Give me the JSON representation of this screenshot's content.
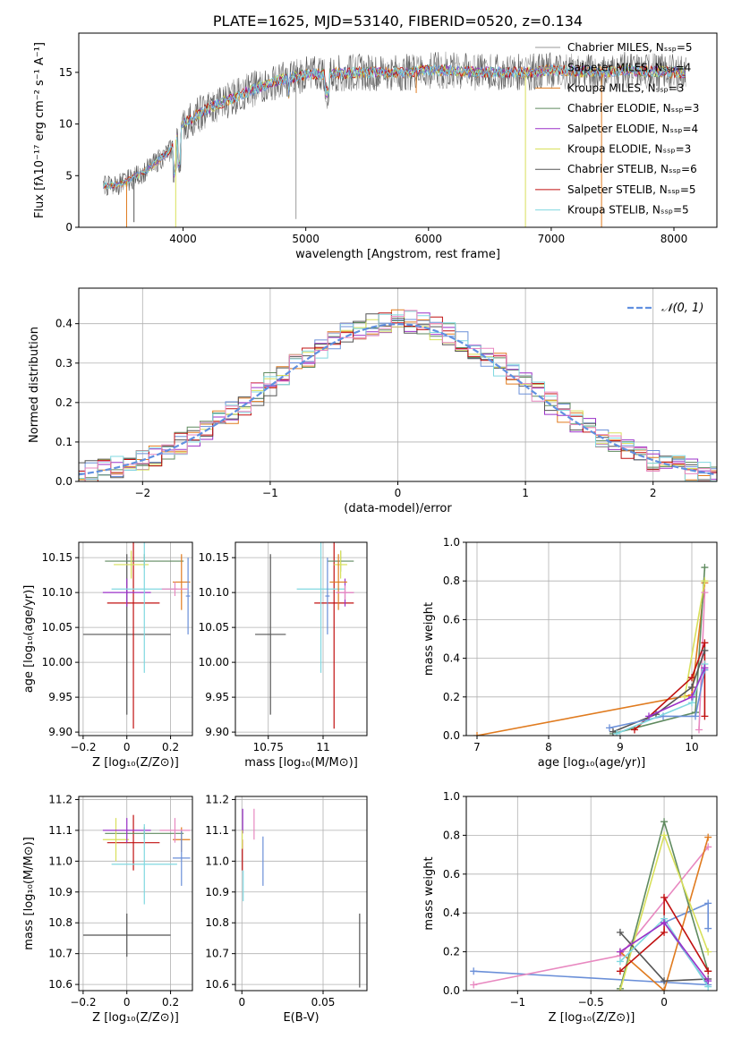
{
  "title": "PLATE=1625, MJD=53140, FIBERID=0520, z=0.134",
  "colors": {
    "chabrier_miles": "#6a8fd8",
    "salpeter_miles": "#9a9a9a",
    "kroupa_miles": "#e07b1f",
    "chabrier_elodie": "#5f8a5f",
    "salpeter_elodie": "#9b30c8",
    "kroupa_elodie": "#d8e05a",
    "chabrier_stelib": "#555555",
    "salpeter_stelib": "#c01010",
    "kroupa_stelib": "#80d8e0",
    "pink": "#e888c0",
    "normal_curve": "#6090e0",
    "grid": "#b0b0b0"
  },
  "chart_data": [
    {
      "id": "spectrum",
      "type": "line",
      "title": "PLATE=1625, MJD=53140, FIBERID=0520, z=0.134",
      "xlabel": "wavelength [Angstrom, rest frame]",
      "ylabel": "Flux [fλ10⁻¹⁷ erg cm⁻² s⁻¹ A⁻¹]",
      "xlim": [
        3150,
        8350
      ],
      "ylim": [
        0,
        18.8
      ],
      "xticks": [
        4000,
        5000,
        6000,
        7000,
        8000
      ],
      "yticks": [
        0,
        5,
        10,
        15
      ],
      "grid": false,
      "legend_position": "top-right",
      "legend": [
        "Chabrier MILES, Nₛₛₚ=5",
        "Salpeter MILES, Nₛₛₚ=4",
        "Kroupa MILES, Nₛₛₚ=3",
        "Chabrier ELODIE, Nₛₛₚ=3",
        "Salpeter ELODIE, Nₛₛₚ=4",
        "Kroupa ELODIE, Nₛₛₚ=3",
        "Chabrier STELIB, Nₛₛₚ=6",
        "Salpeter STELIB, Nₛₛₚ=5",
        "Kroupa STELIB, Nₛₛₚ=5"
      ],
      "continuum": {
        "x": [
          3350,
          3500,
          3700,
          3900,
          4000,
          4200,
          4400,
          4600,
          4800,
          5000,
          5200,
          5400,
          5600,
          5800,
          6000,
          6200,
          6400,
          6600,
          6800,
          7000,
          7200,
          7400,
          7600,
          7800,
          8000,
          8100
        ],
        "y": [
          4.0,
          4.2,
          5.5,
          7.5,
          10.0,
          11.5,
          12.5,
          13.5,
          14.3,
          14.8,
          14.9,
          15.0,
          15.0,
          15.0,
          15.2,
          15.2,
          15.0,
          15.0,
          15.0,
          15.2,
          15.1,
          15.0,
          15.2,
          15.1,
          15.0,
          15.0
        ]
      },
      "dips": [
        {
          "x": 3540,
          "y": 0.0
        },
        {
          "x": 3600,
          "y": 0.5
        },
        {
          "x": 3940,
          "y": 0.0
        },
        {
          "x": 4920,
          "y": 0.8
        },
        {
          "x": 5900,
          "y": 13.0
        },
        {
          "x": 6790,
          "y": 0.0
        },
        {
          "x": 7410,
          "y": 0.0
        }
      ]
    },
    {
      "id": "residuals",
      "type": "histogram",
      "xlabel": "(data-model)/error",
      "ylabel": "Normed distribution",
      "xlim": [
        -2.5,
        2.5
      ],
      "ylim": [
        0,
        0.49
      ],
      "xticks": [
        -2,
        -1,
        0,
        1,
        2
      ],
      "yticks": [
        0.0,
        0.1,
        0.2,
        0.3,
        0.4
      ],
      "grid": true,
      "legend_position": "top-right",
      "legend": [
        "𝒩(0, 1)"
      ]
    },
    {
      "id": "age_vs_Z",
      "type": "scatter",
      "xlabel": "Z [log₁₀(Z/Z⊙)]",
      "ylabel": "age  [log₁₀(age/yr)]",
      "xlim": [
        -0.22,
        0.3
      ],
      "ylim": [
        9.895,
        10.172
      ],
      "xticks": [
        -0.2,
        0.0,
        0.2
      ],
      "yticks": [
        9.9,
        9.95,
        10.0,
        10.05,
        10.1,
        10.15
      ],
      "grid": true,
      "points": [
        {
          "x": 0.0,
          "y": 10.04,
          "xerr": 0.2,
          "yerr": 0.115,
          "c": "chabrier_stelib"
        },
        {
          "x": 0.03,
          "y": 10.085,
          "xerr": 0.12,
          "yerr": 0.18,
          "c": "salpeter_stelib"
        },
        {
          "x": 0.08,
          "y": 10.145,
          "xerr": 0.18,
          "yerr": 0.01,
          "c": "chabrier_elodie"
        },
        {
          "x": 0.02,
          "y": 10.14,
          "xerr": 0.08,
          "yerr": 0.02,
          "c": "kroupa_elodie"
        },
        {
          "x": 0.0,
          "y": 10.1,
          "xerr": 0.11,
          "yerr": 0.02,
          "c": "salpeter_elodie"
        },
        {
          "x": 0.08,
          "y": 10.105,
          "xerr": 0.15,
          "yerr": 0.12,
          "c": "kroupa_stelib"
        },
        {
          "x": 0.25,
          "y": 10.115,
          "xerr": 0.04,
          "yerr": 0.04,
          "c": "kroupa_miles"
        },
        {
          "x": 0.28,
          "y": 10.095,
          "xerr": 0.01,
          "yerr": 0.055,
          "c": "chabrier_miles"
        },
        {
          "x": 0.22,
          "y": 10.105,
          "xerr": 0.06,
          "yerr": 0.01,
          "c": "pink"
        }
      ]
    },
    {
      "id": "age_vs_mass",
      "type": "scatter",
      "xlabel": "mass [log₁₀(M/M⊙)]",
      "ylabel": "",
      "xlim": [
        10.6,
        11.2
      ],
      "ylim": [
        9.895,
        10.172
      ],
      "xticks": [
        10.75,
        11.0
      ],
      "yticks": [
        9.9,
        9.95,
        10.0,
        10.05,
        10.1,
        10.15
      ],
      "grid": true,
      "points": [
        {
          "x": 10.76,
          "y": 10.04,
          "xerr": 0.07,
          "yerr": 0.115,
          "c": "chabrier_stelib"
        },
        {
          "x": 11.05,
          "y": 10.085,
          "xerr": 0.09,
          "yerr": 0.18,
          "c": "salpeter_stelib"
        },
        {
          "x": 11.08,
          "y": 10.145,
          "xerr": 0.06,
          "yerr": 0.015,
          "c": "chabrier_elodie"
        },
        {
          "x": 11.08,
          "y": 10.14,
          "xerr": 0.03,
          "yerr": 0.02,
          "c": "kroupa_elodie"
        },
        {
          "x": 11.1,
          "y": 10.1,
          "xerr": 0.04,
          "yerr": 0.02,
          "c": "salpeter_elodie"
        },
        {
          "x": 10.99,
          "y": 10.105,
          "xerr": 0.11,
          "yerr": 0.12,
          "c": "kroupa_stelib"
        },
        {
          "x": 11.07,
          "y": 10.115,
          "xerr": 0.04,
          "yerr": 0.04,
          "c": "kroupa_miles"
        },
        {
          "x": 11.02,
          "y": 10.095,
          "xerr": 0.01,
          "yerr": 0.055,
          "c": "chabrier_miles"
        },
        {
          "x": 11.1,
          "y": 10.1,
          "xerr": 0.04,
          "yerr": 0.01,
          "c": "pink"
        }
      ]
    },
    {
      "id": "mass_weight_vs_age",
      "type": "line",
      "xlabel": "age  [log₁₀(age/yr)]",
      "ylabel": "mass weight",
      "xlim": [
        6.85,
        10.35
      ],
      "ylim": [
        0,
        1.0
      ],
      "xticks": [
        7,
        8,
        9,
        10
      ],
      "yticks": [
        0.0,
        0.2,
        0.4,
        0.6,
        0.8,
        1.0
      ],
      "grid": true,
      "series": [
        {
          "c": "kroupa_miles",
          "x": [
            7.0,
            10.0,
            10.18
          ],
          "y": [
            0.0,
            0.21,
            0.79
          ]
        },
        {
          "c": "chabrier_elodie",
          "x": [
            8.9,
            10.05,
            10.18
          ],
          "y": [
            0.01,
            0.12,
            0.87
          ]
        },
        {
          "c": "kroupa_elodie",
          "x": [
            9.9,
            10.18
          ],
          "y": [
            0.2,
            0.8
          ]
        },
        {
          "c": "pink",
          "x": [
            10.1,
            10.18
          ],
          "y": [
            0.03,
            0.74
          ]
        },
        {
          "c": "salpeter_stelib",
          "x": [
            9.2,
            10.0,
            10.18,
            10.18
          ],
          "y": [
            0.03,
            0.3,
            0.48,
            0.1
          ]
        },
        {
          "c": "chabrier_stelib",
          "x": [
            8.9,
            9.5,
            10.0,
            10.18
          ],
          "y": [
            0.02,
            0.11,
            0.25,
            0.44
          ]
        },
        {
          "c": "chabrier_miles",
          "x": [
            8.85,
            9.6,
            10.05,
            10.18
          ],
          "y": [
            0.04,
            0.1,
            0.1,
            0.34
          ]
        },
        {
          "c": "kroupa_stelib",
          "x": [
            8.95,
            10.0,
            10.18
          ],
          "y": [
            0.01,
            0.17,
            0.37
          ]
        },
        {
          "c": "salpeter_elodie",
          "x": [
            9.4,
            10.0,
            10.18
          ],
          "y": [
            0.1,
            0.2,
            0.35
          ]
        }
      ]
    },
    {
      "id": "mass_vs_Z",
      "type": "scatter",
      "xlabel": "Z [log₁₀(Z/Z⊙)]",
      "ylabel": "mass [log₁₀(M/M⊙)]",
      "xlim": [
        -0.22,
        0.3
      ],
      "ylim": [
        10.58,
        11.21
      ],
      "xticks": [
        -0.2,
        0.0,
        0.2
      ],
      "yticks": [
        10.6,
        10.7,
        10.8,
        10.9,
        11.0,
        11.1,
        11.2
      ],
      "grid": true,
      "points": [
        {
          "x": 0.0,
          "y": 10.76,
          "xerr": 0.2,
          "yerr": 0.07,
          "c": "chabrier_stelib"
        },
        {
          "x": 0.03,
          "y": 11.06,
          "xerr": 0.12,
          "yerr": 0.09,
          "c": "salpeter_stelib"
        },
        {
          "x": 0.08,
          "y": 11.09,
          "xerr": 0.18,
          "yerr": 0.02,
          "c": "chabrier_elodie"
        },
        {
          "x": -0.05,
          "y": 11.07,
          "xerr": 0.06,
          "yerr": 0.07,
          "c": "kroupa_elodie"
        },
        {
          "x": 0.0,
          "y": 11.1,
          "xerr": 0.11,
          "yerr": 0.04,
          "c": "salpeter_elodie"
        },
        {
          "x": 0.08,
          "y": 10.99,
          "xerr": 0.15,
          "yerr": 0.13,
          "c": "kroupa_stelib"
        },
        {
          "x": 0.25,
          "y": 11.07,
          "xerr": 0.04,
          "yerr": 0.04,
          "c": "kroupa_miles"
        },
        {
          "x": 0.25,
          "y": 11.01,
          "xerr": 0.04,
          "yerr": 0.09,
          "c": "chabrier_miles"
        },
        {
          "x": 0.22,
          "y": 11.1,
          "xerr": 0.07,
          "yerr": 0.04,
          "c": "pink"
        }
      ]
    },
    {
      "id": "mass_vs_ebv",
      "type": "scatter",
      "xlabel": "E(B-V)",
      "ylabel": "",
      "xlim": [
        -0.004,
        0.077
      ],
      "ylim": [
        10.58,
        11.21
      ],
      "xticks": [
        0.0,
        0.05
      ],
      "yticks": [
        10.6,
        10.7,
        10.8,
        10.9,
        11.0,
        11.1,
        11.2
      ],
      "grid": true,
      "points": [
        {
          "x": 0.0725,
          "y": 10.71,
          "xerr": 0.0,
          "yerr": 0.12,
          "c": "chabrier_stelib"
        },
        {
          "x": 0.013,
          "y": 11.0,
          "xerr": 0.0,
          "yerr": 0.08,
          "c": "chabrier_miles"
        },
        {
          "x": 0.0075,
          "y": 11.12,
          "xerr": 0.0,
          "yerr": 0.05,
          "c": "pink"
        },
        {
          "x": 0.0005,
          "y": 11.13,
          "xerr": 0.0,
          "yerr": 0.04,
          "c": "salpeter_elodie"
        },
        {
          "x": 0.0003,
          "y": 11.02,
          "xerr": 0.0,
          "yerr": 0.05,
          "c": "salpeter_stelib"
        },
        {
          "x": 0.0008,
          "y": 10.92,
          "xerr": 0.0,
          "yerr": 0.05,
          "c": "kroupa_stelib"
        },
        {
          "x": 0.0002,
          "y": 11.07,
          "xerr": 0.0,
          "yerr": 0.03,
          "c": "kroupa_elodie"
        }
      ]
    },
    {
      "id": "mass_weight_vs_Z",
      "type": "line",
      "xlabel": "Z [log₁₀(Z/Z⊙)]",
      "ylabel": "mass weight",
      "xlim": [
        -1.35,
        0.36
      ],
      "ylim": [
        0,
        1.0
      ],
      "xticks": [
        -1.0,
        -0.5,
        0.0
      ],
      "yticks": [
        0.0,
        0.2,
        0.4,
        0.6,
        0.8,
        1.0
      ],
      "grid": true,
      "series": [
        {
          "c": "chabrier_miles",
          "x": [
            -1.3,
            0.3,
            0.0,
            0.3,
            0.3
          ],
          "y": [
            0.1,
            0.03,
            0.35,
            0.45,
            0.32
          ]
        },
        {
          "c": "pink",
          "x": [
            -1.3,
            -0.3,
            0.3
          ],
          "y": [
            0.03,
            0.18,
            0.74
          ]
        },
        {
          "c": "kroupa_miles",
          "x": [
            -0.3,
            0.0,
            0.3
          ],
          "y": [
            0.2,
            0.0,
            0.79
          ]
        },
        {
          "c": "chabrier_elodie",
          "x": [
            -0.3,
            0.0,
            0.3
          ],
          "y": [
            0.01,
            0.87,
            0.1
          ]
        },
        {
          "c": "kroupa_elodie",
          "x": [
            -0.3,
            0.0,
            0.3
          ],
          "y": [
            0.0,
            0.8,
            0.2
          ]
        },
        {
          "c": "salpeter_stelib",
          "x": [
            -0.3,
            0.0,
            0.0,
            0.3
          ],
          "y": [
            0.1,
            0.3,
            0.48,
            0.1
          ]
        },
        {
          "c": "chabrier_stelib",
          "x": [
            -0.3,
            0.0,
            0.3
          ],
          "y": [
            0.3,
            0.05,
            0.06
          ]
        },
        {
          "c": "kroupa_stelib",
          "x": [
            -0.3,
            0.0,
            0.3
          ],
          "y": [
            0.15,
            0.37,
            0.02
          ]
        },
        {
          "c": "salpeter_elodie",
          "x": [
            -0.3,
            0.0,
            0.3
          ],
          "y": [
            0.2,
            0.35,
            0.05
          ]
        }
      ]
    }
  ]
}
